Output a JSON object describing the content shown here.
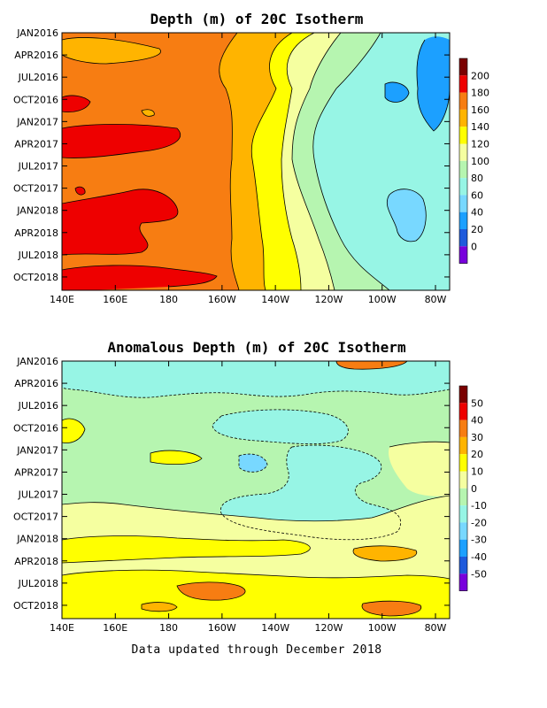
{
  "chart_data": [
    {
      "type": "heatmap",
      "title": "Depth (m) of 20C Isotherm",
      "xlabel": "",
      "ylabel": "",
      "x_ticks": [
        "140E",
        "160E",
        "180",
        "160W",
        "140W",
        "120W",
        "100W",
        "80W"
      ],
      "y_ticks": [
        "JAN2016",
        "APR2016",
        "JUL2016",
        "OCT2016",
        "JAN2017",
        "APR2017",
        "JUL2017",
        "OCT2017",
        "JAN2018",
        "APR2018",
        "JUL2018",
        "OCT2018"
      ],
      "colorbar": {
        "labels": [
          "200",
          "180",
          "160",
          "140",
          "120",
          "100",
          "80",
          "60",
          "40",
          "20",
          "0"
        ],
        "colors": [
          "#7a0000",
          "#ee0000",
          "#f77d12",
          "#ffb400",
          "#ffff00",
          "#f5ffa0",
          "#b6f5b0",
          "#97f5e5",
          "#78d8ff",
          "#1ca0ff",
          "#1e5adc",
          "#7800dc"
        ]
      },
      "colors": {
        "e1": "#ee0000",
        "e2": "#f77d12",
        "e3": "#ffb400",
        "e4": "#ffff00",
        "e5": "#f5ffa0",
        "e6": "#b6f5b0",
        "e7": "#97f5e5",
        "e8": "#78d8ff",
        "e9": "#1ca0ff"
      }
    },
    {
      "type": "heatmap",
      "title": "Anomalous Depth (m) of 20C Isotherm",
      "xlabel": "",
      "ylabel": "",
      "x_ticks": [
        "140E",
        "160E",
        "180",
        "160W",
        "140W",
        "120W",
        "100W",
        "80W"
      ],
      "y_ticks": [
        "JAN2016",
        "APR2016",
        "JUL2016",
        "OCT2016",
        "JAN2017",
        "APR2017",
        "JUL2017",
        "OCT2017",
        "JAN2018",
        "APR2018",
        "JUL2018",
        "OCT2018"
      ],
      "colorbar": {
        "labels": [
          "50",
          "40",
          "30",
          "20",
          "10",
          "0",
          "-10",
          "-20",
          "-30",
          "-40",
          "-50"
        ],
        "colors": [
          "#7a0000",
          "#ee0000",
          "#f77d12",
          "#ffb400",
          "#ffff00",
          "#f5ffa0",
          "#b6f5b0",
          "#97f5e5",
          "#78d8ff",
          "#1ca0ff",
          "#1e5adc",
          "#7800dc"
        ]
      },
      "colors": {
        "a_pos1": "#f5ffa0",
        "a_pos2": "#ffff00",
        "a_pos3": "#ffb400",
        "a_pos4": "#f77d12",
        "a_neg1": "#b6f5b0",
        "a_neg2": "#97f5e5",
        "a_neg3": "#78d8ff"
      }
    }
  ],
  "footer": "Data updated through December 2018"
}
